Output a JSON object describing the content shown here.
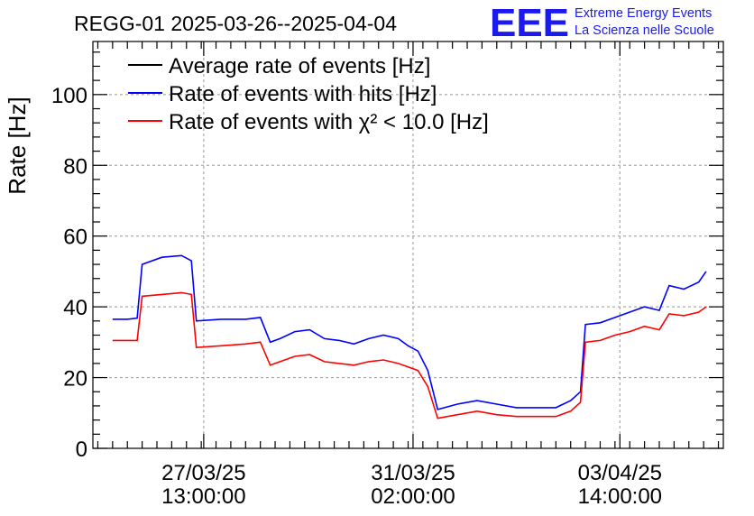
{
  "title": "REGG-01 2025-03-26--2025-04-04",
  "logo": {
    "mark": "EEE",
    "line1": "Extreme Energy Events",
    "line2": "La Scienza nelle Scuole",
    "color": "#1a1aee"
  },
  "chart_data": {
    "type": "line",
    "ylabel": "Rate [Hz]",
    "xlabel": "",
    "ylim": [
      0,
      115
    ],
    "yticks": [
      0,
      20,
      40,
      60,
      80,
      100
    ],
    "xlim": [
      "2025-03-25 16:00",
      "2025-04-05 08:00"
    ],
    "xticks": [
      {
        "x": "2025-03-27 13:00",
        "date": "27/03/25",
        "time": "13:00:00"
      },
      {
        "x": "2025-03-31 02:00",
        "date": "31/03/25",
        "time": "02:00:00"
      },
      {
        "x": "2025-04-03 14:00",
        "date": "03/04/25",
        "time": "14:00:00"
      }
    ],
    "grid": true,
    "legend_position": "top-left",
    "series": [
      {
        "name": "Average rate of events [Hz]",
        "color": "#000000",
        "points": []
      },
      {
        "name": "Rate of events with hits [Hz]",
        "color": "#0000ff",
        "points": [
          [
            "2025-03-26 00:00",
            36.5
          ],
          [
            "2025-03-26 06:00",
            36.5
          ],
          [
            "2025-03-26 10:00",
            36.8
          ],
          [
            "2025-03-26 12:00",
            52.0
          ],
          [
            "2025-03-26 20:00",
            54.0
          ],
          [
            "2025-03-27 04:00",
            54.5
          ],
          [
            "2025-03-27 08:00",
            53.0
          ],
          [
            "2025-03-27 10:00",
            36.0
          ],
          [
            "2025-03-27 20:00",
            36.5
          ],
          [
            "2025-03-28 06:00",
            36.5
          ],
          [
            "2025-03-28 12:00",
            37.0
          ],
          [
            "2025-03-28 16:00",
            30.0
          ],
          [
            "2025-03-28 20:00",
            31.0
          ],
          [
            "2025-03-29 02:00",
            33.0
          ],
          [
            "2025-03-29 08:00",
            33.5
          ],
          [
            "2025-03-29 14:00",
            31.0
          ],
          [
            "2025-03-29 20:00",
            30.5
          ],
          [
            "2025-03-30 02:00",
            29.5
          ],
          [
            "2025-03-30 08:00",
            31.0
          ],
          [
            "2025-03-30 14:00",
            32.0
          ],
          [
            "2025-03-30 20:00",
            31.0
          ],
          [
            "2025-03-31 00:00",
            29.0
          ],
          [
            "2025-03-31 04:00",
            27.5
          ],
          [
            "2025-03-31 08:00",
            22.0
          ],
          [
            "2025-03-31 12:00",
            11.0
          ],
          [
            "2025-03-31 20:00",
            12.5
          ],
          [
            "2025-04-01 04:00",
            13.5
          ],
          [
            "2025-04-01 12:00",
            12.5
          ],
          [
            "2025-04-01 20:00",
            11.5
          ],
          [
            "2025-04-02 04:00",
            11.5
          ],
          [
            "2025-04-02 12:00",
            11.5
          ],
          [
            "2025-04-02 18:00",
            13.5
          ],
          [
            "2025-04-02 22:00",
            16.0
          ],
          [
            "2025-04-03 00:00",
            35.0
          ],
          [
            "2025-04-03 06:00",
            35.5
          ],
          [
            "2025-04-03 12:00",
            37.0
          ],
          [
            "2025-04-03 18:00",
            38.5
          ],
          [
            "2025-04-04 00:00",
            40.0
          ],
          [
            "2025-04-04 06:00",
            39.0
          ],
          [
            "2025-04-04 10:00",
            46.0
          ],
          [
            "2025-04-04 16:00",
            45.0
          ],
          [
            "2025-04-04 22:00",
            47.0
          ],
          [
            "2025-04-05 01:00",
            50.0
          ]
        ]
      },
      {
        "name": "Rate of events with χ² < 10.0 [Hz]",
        "color": "#ff0000",
        "points": [
          [
            "2025-03-26 00:00",
            30.5
          ],
          [
            "2025-03-26 06:00",
            30.5
          ],
          [
            "2025-03-26 10:00",
            30.5
          ],
          [
            "2025-03-26 12:00",
            43.0
          ],
          [
            "2025-03-26 20:00",
            43.5
          ],
          [
            "2025-03-27 04:00",
            44.0
          ],
          [
            "2025-03-27 08:00",
            43.5
          ],
          [
            "2025-03-27 10:00",
            28.5
          ],
          [
            "2025-03-27 20:00",
            29.0
          ],
          [
            "2025-03-28 06:00",
            29.5
          ],
          [
            "2025-03-28 12:00",
            30.0
          ],
          [
            "2025-03-28 16:00",
            23.5
          ],
          [
            "2025-03-28 20:00",
            24.5
          ],
          [
            "2025-03-29 02:00",
            26.0
          ],
          [
            "2025-03-29 08:00",
            26.5
          ],
          [
            "2025-03-29 14:00",
            24.5
          ],
          [
            "2025-03-29 20:00",
            24.0
          ],
          [
            "2025-03-30 02:00",
            23.5
          ],
          [
            "2025-03-30 08:00",
            24.5
          ],
          [
            "2025-03-30 14:00",
            25.0
          ],
          [
            "2025-03-30 20:00",
            24.0
          ],
          [
            "2025-03-31 00:00",
            23.0
          ],
          [
            "2025-03-31 04:00",
            22.0
          ],
          [
            "2025-03-31 08:00",
            17.5
          ],
          [
            "2025-03-31 12:00",
            8.5
          ],
          [
            "2025-03-31 20:00",
            9.5
          ],
          [
            "2025-04-01 04:00",
            10.5
          ],
          [
            "2025-04-01 12:00",
            9.5
          ],
          [
            "2025-04-01 20:00",
            9.0
          ],
          [
            "2025-04-02 04:00",
            9.0
          ],
          [
            "2025-04-02 12:00",
            9.0
          ],
          [
            "2025-04-02 18:00",
            10.5
          ],
          [
            "2025-04-02 22:00",
            13.0
          ],
          [
            "2025-04-03 00:00",
            30.0
          ],
          [
            "2025-04-03 06:00",
            30.5
          ],
          [
            "2025-04-03 12:00",
            32.0
          ],
          [
            "2025-04-03 18:00",
            33.0
          ],
          [
            "2025-04-04 00:00",
            34.5
          ],
          [
            "2025-04-04 06:00",
            33.5
          ],
          [
            "2025-04-04 10:00",
            38.0
          ],
          [
            "2025-04-04 16:00",
            37.5
          ],
          [
            "2025-04-04 22:00",
            38.5
          ],
          [
            "2025-04-05 01:00",
            40.0
          ]
        ]
      }
    ]
  }
}
